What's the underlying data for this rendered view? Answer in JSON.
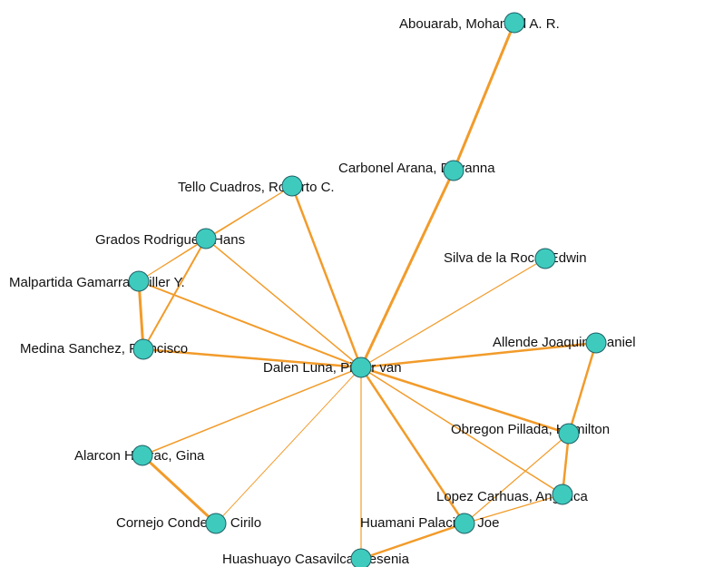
{
  "nodes": [
    {
      "label": "Dalen Luna, Pieter van"
    },
    {
      "label": "Abouarab, Mohamed A. R."
    },
    {
      "label": "Carbonel Arana, Dayanna"
    },
    {
      "label": "Tello Cuadros, Roberto C."
    },
    {
      "label": "Grados Rodriguez, Hans"
    },
    {
      "label": "Silva de la Roca, Edwin"
    },
    {
      "label": "Malpartida Gamarra, Miller Y."
    },
    {
      "label": "Medina Sanchez, Francisco"
    },
    {
      "label": "Allende Joaquin, Daniel"
    },
    {
      "label": "Obregon Pillada, Hamilton"
    },
    {
      "label": "Alarcon Huarac, Gina"
    },
    {
      "label": "Lopez Carhuas, Angelica"
    },
    {
      "label": "Cornejo Condena, Cirilo"
    },
    {
      "label": "Huamani Palacios, Joe"
    },
    {
      "label": "Huashuayo Casavilca, Yesenia"
    }
  ]
}
